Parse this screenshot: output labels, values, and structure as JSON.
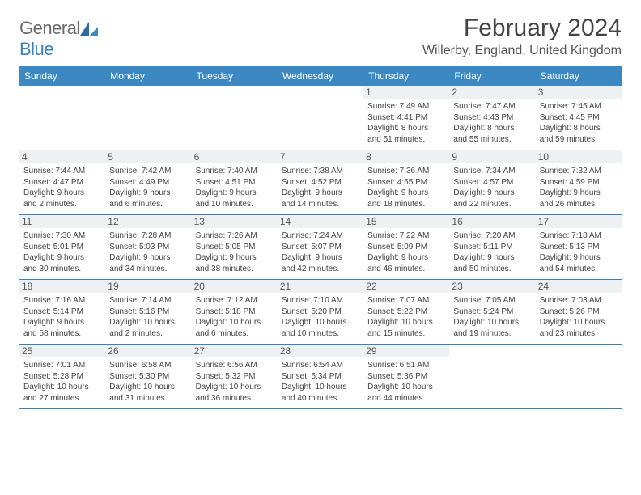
{
  "brand": {
    "text1": "General",
    "text2": "Blue"
  },
  "title": "February 2024",
  "location": "Willerby, England, United Kingdom",
  "colors": {
    "header_bg": "#3b88c3",
    "border": "#3b7fbc",
    "daynum_bg": "#eef1f4"
  },
  "dow": [
    "Sunday",
    "Monday",
    "Tuesday",
    "Wednesday",
    "Thursday",
    "Friday",
    "Saturday"
  ],
  "weeks": [
    [
      null,
      null,
      null,
      null,
      {
        "n": "1",
        "sr": "Sunrise: 7:49 AM",
        "ss": "Sunset: 4:41 PM",
        "d1": "Daylight: 8 hours",
        "d2": "and 51 minutes."
      },
      {
        "n": "2",
        "sr": "Sunrise: 7:47 AM",
        "ss": "Sunset: 4:43 PM",
        "d1": "Daylight: 8 hours",
        "d2": "and 55 minutes."
      },
      {
        "n": "3",
        "sr": "Sunrise: 7:45 AM",
        "ss": "Sunset: 4:45 PM",
        "d1": "Daylight: 8 hours",
        "d2": "and 59 minutes."
      }
    ],
    [
      {
        "n": "4",
        "sr": "Sunrise: 7:44 AM",
        "ss": "Sunset: 4:47 PM",
        "d1": "Daylight: 9 hours",
        "d2": "and 2 minutes."
      },
      {
        "n": "5",
        "sr": "Sunrise: 7:42 AM",
        "ss": "Sunset: 4:49 PM",
        "d1": "Daylight: 9 hours",
        "d2": "and 6 minutes."
      },
      {
        "n": "6",
        "sr": "Sunrise: 7:40 AM",
        "ss": "Sunset: 4:51 PM",
        "d1": "Daylight: 9 hours",
        "d2": "and 10 minutes."
      },
      {
        "n": "7",
        "sr": "Sunrise: 7:38 AM",
        "ss": "Sunset: 4:52 PM",
        "d1": "Daylight: 9 hours",
        "d2": "and 14 minutes."
      },
      {
        "n": "8",
        "sr": "Sunrise: 7:36 AM",
        "ss": "Sunset: 4:55 PM",
        "d1": "Daylight: 9 hours",
        "d2": "and 18 minutes."
      },
      {
        "n": "9",
        "sr": "Sunrise: 7:34 AM",
        "ss": "Sunset: 4:57 PM",
        "d1": "Daylight: 9 hours",
        "d2": "and 22 minutes."
      },
      {
        "n": "10",
        "sr": "Sunrise: 7:32 AM",
        "ss": "Sunset: 4:59 PM",
        "d1": "Daylight: 9 hours",
        "d2": "and 26 minutes."
      }
    ],
    [
      {
        "n": "11",
        "sr": "Sunrise: 7:30 AM",
        "ss": "Sunset: 5:01 PM",
        "d1": "Daylight: 9 hours",
        "d2": "and 30 minutes."
      },
      {
        "n": "12",
        "sr": "Sunrise: 7:28 AM",
        "ss": "Sunset: 5:03 PM",
        "d1": "Daylight: 9 hours",
        "d2": "and 34 minutes."
      },
      {
        "n": "13",
        "sr": "Sunrise: 7:26 AM",
        "ss": "Sunset: 5:05 PM",
        "d1": "Daylight: 9 hours",
        "d2": "and 38 minutes."
      },
      {
        "n": "14",
        "sr": "Sunrise: 7:24 AM",
        "ss": "Sunset: 5:07 PM",
        "d1": "Daylight: 9 hours",
        "d2": "and 42 minutes."
      },
      {
        "n": "15",
        "sr": "Sunrise: 7:22 AM",
        "ss": "Sunset: 5:09 PM",
        "d1": "Daylight: 9 hours",
        "d2": "and 46 minutes."
      },
      {
        "n": "16",
        "sr": "Sunrise: 7:20 AM",
        "ss": "Sunset: 5:11 PM",
        "d1": "Daylight: 9 hours",
        "d2": "and 50 minutes."
      },
      {
        "n": "17",
        "sr": "Sunrise: 7:18 AM",
        "ss": "Sunset: 5:13 PM",
        "d1": "Daylight: 9 hours",
        "d2": "and 54 minutes."
      }
    ],
    [
      {
        "n": "18",
        "sr": "Sunrise: 7:16 AM",
        "ss": "Sunset: 5:14 PM",
        "d1": "Daylight: 9 hours",
        "d2": "and 58 minutes."
      },
      {
        "n": "19",
        "sr": "Sunrise: 7:14 AM",
        "ss": "Sunset: 5:16 PM",
        "d1": "Daylight: 10 hours",
        "d2": "and 2 minutes."
      },
      {
        "n": "20",
        "sr": "Sunrise: 7:12 AM",
        "ss": "Sunset: 5:18 PM",
        "d1": "Daylight: 10 hours",
        "d2": "and 6 minutes."
      },
      {
        "n": "21",
        "sr": "Sunrise: 7:10 AM",
        "ss": "Sunset: 5:20 PM",
        "d1": "Daylight: 10 hours",
        "d2": "and 10 minutes."
      },
      {
        "n": "22",
        "sr": "Sunrise: 7:07 AM",
        "ss": "Sunset: 5:22 PM",
        "d1": "Daylight: 10 hours",
        "d2": "and 15 minutes."
      },
      {
        "n": "23",
        "sr": "Sunrise: 7:05 AM",
        "ss": "Sunset: 5:24 PM",
        "d1": "Daylight: 10 hours",
        "d2": "and 19 minutes."
      },
      {
        "n": "24",
        "sr": "Sunrise: 7:03 AM",
        "ss": "Sunset: 5:26 PM",
        "d1": "Daylight: 10 hours",
        "d2": "and 23 minutes."
      }
    ],
    [
      {
        "n": "25",
        "sr": "Sunrise: 7:01 AM",
        "ss": "Sunset: 5:28 PM",
        "d1": "Daylight: 10 hours",
        "d2": "and 27 minutes."
      },
      {
        "n": "26",
        "sr": "Sunrise: 6:58 AM",
        "ss": "Sunset: 5:30 PM",
        "d1": "Daylight: 10 hours",
        "d2": "and 31 minutes."
      },
      {
        "n": "27",
        "sr": "Sunrise: 6:56 AM",
        "ss": "Sunset: 5:32 PM",
        "d1": "Daylight: 10 hours",
        "d2": "and 36 minutes."
      },
      {
        "n": "28",
        "sr": "Sunrise: 6:54 AM",
        "ss": "Sunset: 5:34 PM",
        "d1": "Daylight: 10 hours",
        "d2": "and 40 minutes."
      },
      {
        "n": "29",
        "sr": "Sunrise: 6:51 AM",
        "ss": "Sunset: 5:36 PM",
        "d1": "Daylight: 10 hours",
        "d2": "and 44 minutes."
      },
      null,
      null
    ]
  ]
}
